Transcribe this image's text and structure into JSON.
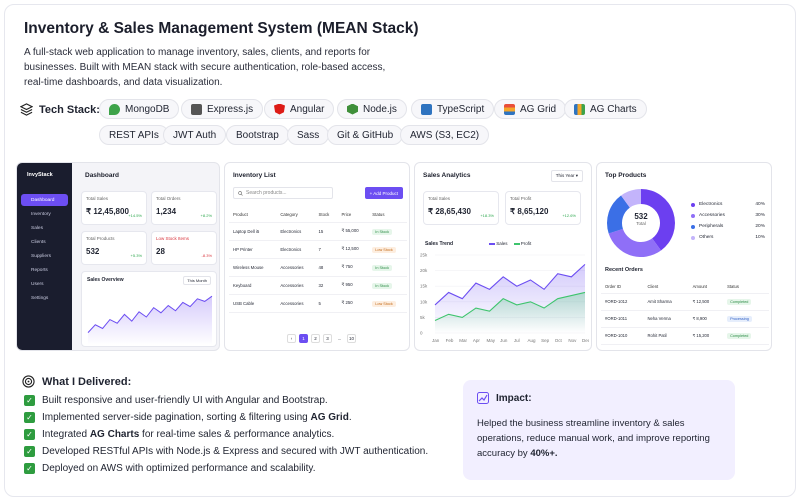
{
  "header": {
    "title": "Inventory & Sales Management System (MEAN Stack)",
    "description": "A full-stack web application to manage inventory, sales, clients, and reports for businesses. Built with MEAN stack with secure authentication, role-based access, real-time dashboards, and data visualization."
  },
  "tech_stack": {
    "label": "Tech Stack:",
    "items": [
      "MongoDB",
      "Express.js",
      "Angular",
      "Node.js",
      "TypeScript",
      "AG Grid",
      "AG Charts",
      "REST APIs",
      "JWT Auth",
      "Bootstrap",
      "Sass",
      "Git & GitHub",
      "AWS (S3, EC2)"
    ]
  },
  "dashboard": {
    "brand": "InvyStack",
    "nav": [
      "Dashboard",
      "Inventory",
      "Sales",
      "Clients",
      "Suppliers",
      "Reports",
      "Users",
      "Settings"
    ],
    "title": "Dashboard",
    "stats": [
      {
        "label": "Total Sales",
        "value": "₹ 12,45,800",
        "change": "+14.5%"
      },
      {
        "label": "Total Orders",
        "value": "1,234",
        "change": "+8.2%"
      },
      {
        "label": "Total Products",
        "value": "532",
        "change": "+5.3%"
      },
      {
        "label": "Low Stock Items",
        "value": "28",
        "change": "-8.3%"
      }
    ],
    "overview_title": "Sales Overview",
    "overview_filter": "This Month"
  },
  "inventory": {
    "title": "Inventory List",
    "search_placeholder": "Search products...",
    "add_label": "+ Add Product",
    "columns": [
      "Product",
      "Category",
      "Stock",
      "Price",
      "Status"
    ],
    "rows": [
      [
        "Laptop Dell i5",
        "Electronics",
        "15",
        "₹ 55,000",
        "In Stock"
      ],
      [
        "HP Printer",
        "Electronics",
        "7",
        "₹ 12,500",
        "Low Stock"
      ],
      [
        "Wireless Mouse",
        "Accessories",
        "48",
        "₹ 750",
        "In Stock"
      ],
      [
        "Keyboard",
        "Accessories",
        "32",
        "₹ 950",
        "In Stock"
      ],
      [
        "USB Cable",
        "Accessories",
        "5",
        "₹ 250",
        "Low Stock"
      ]
    ],
    "pagination": [
      "‹",
      "1",
      "2",
      "3",
      "...",
      "10"
    ]
  },
  "analytics": {
    "title": "Sales Analytics",
    "filter": "This Year",
    "stats": [
      {
        "label": "Total Sales",
        "value": "₹ 28,65,430",
        "change": "+18.3%"
      },
      {
        "label": "Total Profit",
        "value": "₹ 8,65,120",
        "change": "+12.6%"
      }
    ],
    "trend_title": "Sales Trend",
    "legend": [
      "Sales",
      "Profit"
    ],
    "y_ticks": [
      "25k",
      "20k",
      "15k",
      "10k",
      "5k",
      "0"
    ],
    "months": [
      "Jan",
      "Feb",
      "Mar",
      "Apr",
      "May",
      "Jun",
      "Jul",
      "Aug",
      "Sep",
      "Oct",
      "Nov",
      "Dec"
    ]
  },
  "top_products": {
    "title": "Top Products",
    "total_value": "532",
    "total_label": "Total",
    "legend": [
      {
        "name": "Electronics",
        "pct": "40%",
        "color": "#6c3ff0"
      },
      {
        "name": "Accessories",
        "pct": "30%",
        "color": "#8f6ff7"
      },
      {
        "name": "Peripherals",
        "pct": "20%",
        "color": "#3b6fe6"
      },
      {
        "name": "Others",
        "pct": "10%",
        "color": "#c3b4fb"
      }
    ],
    "orders_title": "Recent Orders",
    "order_columns": [
      "Order ID",
      "Client",
      "Amount",
      "Status"
    ],
    "orders": [
      [
        "#ORD-1012",
        "Amit Sharma",
        "₹ 12,500",
        "Completed"
      ],
      [
        "#ORD-1011",
        "Neha Verma",
        "₹ 8,900",
        "Processing"
      ],
      [
        "#ORD-1010",
        "Rohit Patil",
        "₹ 15,200",
        "Completed"
      ]
    ]
  },
  "delivered": {
    "title": "What I Delivered:",
    "items": [
      {
        "pre": "Built responsive and user-friendly UI with Angular and Bootstrap.",
        "bold": "",
        "post": ""
      },
      {
        "pre": "Implemented server-side pagination, sorting & filtering using ",
        "bold": "AG Grid",
        "post": "."
      },
      {
        "pre": "Integrated ",
        "bold": "AG Charts",
        "post": " for real-time sales & performance analytics."
      },
      {
        "pre": "Developed RESTful APIs with Node.js & Express and secured with JWT authentication.",
        "bold": "",
        "post": ""
      },
      {
        "pre": "Deployed on AWS with optimized performance and scalability.",
        "bold": "",
        "post": ""
      }
    ]
  },
  "impact": {
    "title": "Impact:",
    "text": "Helped the business streamline inventory & sales operations, reduce manual work, and improve reporting accuracy by ",
    "bold": "40%+."
  },
  "chart_data": [
    {
      "type": "area",
      "title": "Sales Overview",
      "x": [
        "1",
        "2",
        "3",
        "4",
        "5",
        "6",
        "7",
        "8",
        "9",
        "10",
        "11",
        "12",
        "13",
        "14",
        "15",
        "16",
        "17",
        "18"
      ],
      "series": [
        {
          "values": [
            20,
            35,
            28,
            45,
            38,
            55,
            42,
            60,
            50,
            68,
            58,
            72,
            62,
            78,
            70,
            85,
            80,
            90
          ]
        }
      ],
      "ylim": [
        0,
        100
      ]
    },
    {
      "type": "area",
      "title": "Sales Trend",
      "x": [
        "Jan",
        "Feb",
        "Mar",
        "Apr",
        "May",
        "Jun",
        "Jul",
        "Aug",
        "Sep",
        "Oct",
        "Nov",
        "Dec"
      ],
      "series": [
        {
          "name": "Sales",
          "values": [
            9,
            13,
            11,
            16,
            14,
            18,
            15,
            17,
            14,
            19,
            18,
            22
          ]
        },
        {
          "name": "Profit",
          "values": [
            4,
            6,
            5,
            8,
            7,
            11,
            9,
            10,
            8,
            11,
            12,
            13
          ]
        }
      ],
      "ylim": [
        0,
        25
      ]
    },
    {
      "type": "pie",
      "title": "Top Products",
      "categories": [
        "Electronics",
        "Accessories",
        "Peripherals",
        "Others"
      ],
      "values": [
        40,
        30,
        20,
        10
      ]
    }
  ]
}
